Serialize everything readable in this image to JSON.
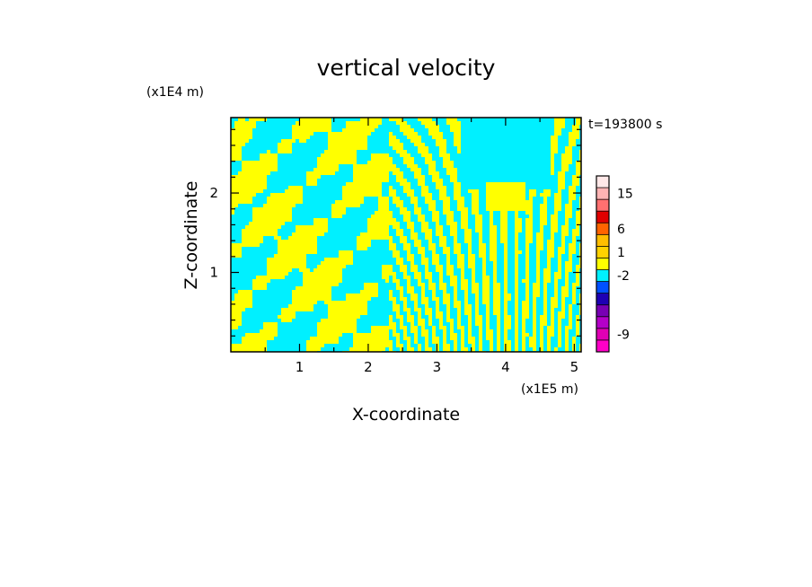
{
  "chart_data": {
    "type": "heatmap",
    "title": "vertical velocity",
    "xlabel": "X-coordinate",
    "ylabel": "Z-coordinate",
    "x_multiplier": "(x1E5 m)",
    "y_multiplier": "(x1E4 m)",
    "time_label": "t=193800 s",
    "xlim": [
      0,
      5.1
    ],
    "ylim": [
      0,
      2.95
    ],
    "x_ticks": [
      {
        "value": 1,
        "label": "1"
      },
      {
        "value": 2,
        "label": "2"
      },
      {
        "value": 3,
        "label": "3"
      },
      {
        "value": 4,
        "label": "4"
      },
      {
        "value": 5,
        "label": "5"
      }
    ],
    "y_ticks": [
      {
        "value": 1,
        "label": "1"
      },
      {
        "value": 2,
        "label": "2"
      }
    ],
    "field_colors": {
      "negative": "#00f0ff",
      "positive": "#ffff00"
    },
    "colorbar": {
      "levels": [
        {
          "color": "#ff00c8"
        },
        {
          "color": "#e000b4"
        },
        {
          "color": "#b400c8"
        },
        {
          "color": "#7800b4"
        },
        {
          "color": "#1e00b4"
        },
        {
          "color": "#0050ff"
        },
        {
          "color": "#00f0ff"
        },
        {
          "color": "#ffff00"
        },
        {
          "color": "#ffd200"
        },
        {
          "color": "#ffbe00"
        },
        {
          "color": "#ff6400"
        },
        {
          "color": "#e00000"
        },
        {
          "color": "#ff7070"
        },
        {
          "color": "#ffb4b4"
        },
        {
          "color": "#ffe8e8"
        }
      ],
      "labels": [
        {
          "label": "-9",
          "level": 1
        },
        {
          "label": "-2",
          "level": 6
        },
        {
          "label": "1",
          "level": 8
        },
        {
          "label": "6",
          "level": 10
        },
        {
          "label": "15",
          "level": 13
        }
      ]
    }
  }
}
